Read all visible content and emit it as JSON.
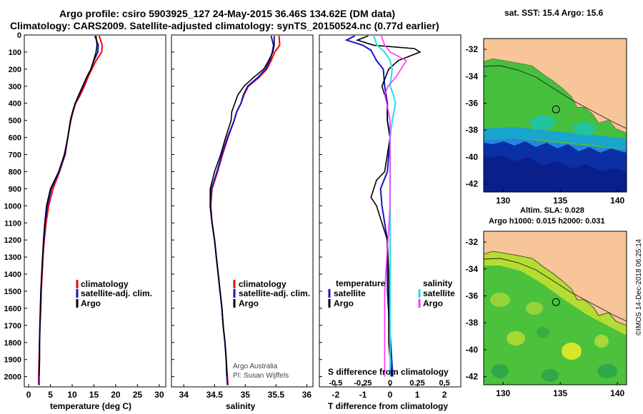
{
  "header": {
    "title_line1": "Argo profile: csiro 5903925_127 24-May-2015 36.46S 134.62E (DM data)",
    "title_line2": "Climatology: CARS2009. Satellite-adjusted climatology: synTS_20150524.nc (0.77d earlier)"
  },
  "credit": "©IMOS 14-Dec-2018 06:25:14",
  "colors": {
    "argo": "#000000",
    "climatology": "#ff0000",
    "satellite_adj": "#1515c8",
    "s_satellite": "#22ddee",
    "s_argo": "#ff33ff",
    "land": "#f7c597"
  },
  "chart_data": [
    {
      "type": "line",
      "panel": "temperature",
      "xlabel": "temperature (deg C)",
      "ylabel": "",
      "xlim": [
        -1,
        31.5
      ],
      "ylim": [
        2060,
        0
      ],
      "xticks": [
        "0",
        "5",
        "10",
        "15",
        "20",
        "25",
        "30"
      ],
      "yticks": [
        "0",
        "100",
        "200",
        "300",
        "400",
        "500",
        "600",
        "700",
        "800",
        "900",
        "1000",
        "1100",
        "1200",
        "1300",
        "1400",
        "1500",
        "1600",
        "1700",
        "1800",
        "1900",
        "2000"
      ],
      "legend": [
        "climatology",
        "satellite-adj. clim.",
        "Argo"
      ],
      "series": [
        {
          "name": "climatology",
          "depth": [
            5,
            60,
            100,
            150,
            200,
            250,
            300,
            350,
            400,
            450,
            500,
            600,
            700,
            800,
            900,
            1000,
            1100,
            1200,
            1300,
            1400,
            1500,
            1600,
            1700,
            1800,
            1900,
            2000,
            2050
          ],
          "values": [
            16.2,
            16.9,
            16.8,
            15.5,
            14.5,
            13.6,
            12.8,
            11.9,
            10.8,
            10.2,
            9.7,
            9.0,
            8.4,
            7.1,
            5.6,
            4.6,
            4.0,
            3.6,
            3.3,
            3.1,
            2.9,
            2.8,
            2.6,
            2.5,
            2.4,
            2.3,
            2.3
          ]
        },
        {
          "name": "satellite-adj. clim.",
          "depth": [
            5,
            60,
            100,
            150,
            200,
            250,
            300,
            350,
            400,
            450,
            500,
            600,
            700,
            800,
            900,
            1000,
            1100,
            1200,
            1300,
            1400,
            1500,
            1600,
            1700,
            1800,
            1900,
            2000,
            2050
          ],
          "values": [
            15.2,
            16.0,
            15.9,
            15.0,
            14.3,
            13.3,
            12.5,
            11.6,
            10.7,
            10.1,
            9.6,
            9.0,
            8.3,
            7.0,
            5.2,
            4.3,
            3.8,
            3.5,
            3.2,
            3.0,
            2.8,
            2.7,
            2.6,
            2.5,
            2.5,
            2.4,
            2.4
          ]
        },
        {
          "name": "Argo",
          "depth": [
            5,
            60,
            100,
            150,
            200,
            250,
            300,
            350,
            400,
            450,
            500,
            600,
            700,
            800,
            900,
            1000,
            1100,
            1200,
            1300,
            1400,
            1500,
            1600,
            1700,
            1800,
            1900,
            2000
          ],
          "values": [
            15.5,
            15.7,
            15.5,
            14.9,
            14.3,
            13.3,
            12.4,
            11.5,
            10.7,
            10.1,
            9.6,
            9.0,
            8.2,
            6.9,
            5.0,
            4.1,
            3.7,
            3.4,
            3.2,
            3.0,
            2.8,
            2.7,
            2.6,
            2.5,
            2.5,
            2.4
          ]
        }
      ]
    },
    {
      "type": "line",
      "panel": "salinity",
      "xlabel": "salinity",
      "ylabel": "",
      "xlim": [
        33.8,
        36.1
      ],
      "ylim": [
        2060,
        0
      ],
      "xticks": [
        "34",
        "34.5",
        "35",
        "35.5",
        "36"
      ],
      "legend": [
        "climatology",
        "satellite-adj. clim.",
        "Argo"
      ],
      "annotations": [
        "Argo Australia",
        "PI: Susan Wijffels"
      ],
      "series": [
        {
          "name": "climatology",
          "depth": [
            5,
            60,
            100,
            150,
            200,
            250,
            300,
            350,
            400,
            450,
            500,
            600,
            700,
            800,
            900,
            1000,
            1100,
            1200,
            1300,
            1400,
            1500,
            1600,
            1700,
            1800,
            1900,
            2000,
            2050
          ],
          "values": [
            35.55,
            35.56,
            35.48,
            35.42,
            35.35,
            35.22,
            35.05,
            34.98,
            34.93,
            34.86,
            34.82,
            34.72,
            34.63,
            34.55,
            34.46,
            34.44,
            34.46,
            34.5,
            34.53,
            34.56,
            34.59,
            34.62,
            34.64,
            34.67,
            34.69,
            34.71,
            34.72
          ]
        },
        {
          "name": "satellite-adj. clim.",
          "depth": [
            5,
            60,
            100,
            150,
            200,
            250,
            300,
            350,
            400,
            450,
            500,
            600,
            700,
            800,
            900,
            1000,
            1100,
            1200,
            1300,
            1400,
            1500,
            1600,
            1700,
            1800,
            1900,
            2000,
            2050
          ],
          "values": [
            35.42,
            35.46,
            35.44,
            35.4,
            35.33,
            35.2,
            35.04,
            34.97,
            34.93,
            34.86,
            34.82,
            34.71,
            34.62,
            34.54,
            34.45,
            34.43,
            34.46,
            34.5,
            34.53,
            34.56,
            34.59,
            34.62,
            34.64,
            34.67,
            34.69,
            34.7,
            34.71
          ]
        },
        {
          "name": "Argo",
          "depth": [
            5,
            60,
            100,
            150,
            200,
            250,
            300,
            350,
            400,
            450,
            500,
            600,
            700,
            800,
            900,
            1000,
            1100,
            1200,
            1300,
            1400,
            1500,
            1600,
            1700,
            1800,
            1900,
            2000
          ],
          "values": [
            35.47,
            35.47,
            35.45,
            35.38,
            35.3,
            35.13,
            34.98,
            34.88,
            34.83,
            34.78,
            34.77,
            34.68,
            34.6,
            34.5,
            34.43,
            34.43,
            34.46,
            34.5,
            34.53,
            34.56,
            34.59,
            34.62,
            34.64,
            34.67,
            34.69,
            34.7
          ]
        }
      ]
    },
    {
      "type": "line",
      "panel": "difference",
      "xlabel": "T difference from climatology",
      "xlabel_top": "S difference from climatology",
      "xlim": [
        -2.6,
        2.6
      ],
      "ylim": [
        2060,
        0
      ],
      "xticks": [
        "-2",
        "-1",
        "0",
        "1",
        "2"
      ],
      "xticks_top": [
        "-0.5",
        "-0.25",
        "0",
        "0.25",
        "0.5"
      ],
      "legend_t_title": "temperature",
      "legend_s_title": "salinity",
      "legend_t": [
        "satellite",
        "Argo"
      ],
      "legend_s": [
        "satellite",
        "Argo"
      ],
      "series": [
        {
          "name": "temperature satellite",
          "depth": [
            5,
            30,
            60,
            90,
            120,
            150,
            200,
            300,
            400,
            500,
            600,
            700,
            800,
            900,
            1000,
            1100,
            1200,
            1500,
            2000
          ],
          "values": [
            -1.3,
            -1.6,
            -1.0,
            -0.7,
            -0.6,
            -0.5,
            -0.25,
            -0.2,
            -0.1,
            -0.1,
            0.0,
            -0.05,
            -0.1,
            -0.35,
            -0.3,
            -0.2,
            -0.1,
            -0.1,
            0.1
          ]
        },
        {
          "name": "temperature Argo",
          "depth": [
            5,
            30,
            60,
            80,
            100,
            150,
            200,
            300,
            400,
            500,
            600,
            700,
            800,
            850,
            900,
            950,
            1000,
            1100,
            1200,
            1400,
            1600,
            1800,
            2000
          ],
          "values": [
            -0.8,
            -1.2,
            -0.6,
            0.9,
            1.1,
            0.3,
            -0.05,
            -0.3,
            -0.1,
            -0.1,
            0.0,
            -0.1,
            -0.2,
            -0.5,
            -0.6,
            -0.7,
            -0.5,
            -0.3,
            -0.1,
            -0.05,
            -0.05,
            -0.05,
            0.05
          ]
        },
        {
          "name": "salinity satellite",
          "depth": [
            5,
            60,
            100,
            150,
            200,
            250,
            300,
            350,
            400,
            500,
            600,
            800,
            1000,
            1200,
            1500,
            2000
          ],
          "values": [
            -0.15,
            -0.12,
            -0.05,
            0.0,
            0.02,
            0.01,
            0.0,
            0.03,
            0.05,
            0.02,
            0.0,
            0.0,
            0.0,
            0.0,
            0.0,
            0.0
          ]
        },
        {
          "name": "salinity Argo",
          "depth": [
            5,
            60,
            100,
            150,
            200,
            250,
            300,
            350,
            400,
            500,
            600,
            800,
            1000,
            1200,
            1500,
            2000
          ],
          "values": [
            -0.08,
            -0.05,
            0.0,
            0.15,
            0.1,
            0.05,
            -0.02,
            -0.05,
            -0.03,
            0.0,
            0.0,
            0.0,
            0.0,
            -0.02,
            -0.05,
            -0.05
          ]
        }
      ]
    }
  ],
  "maps": [
    {
      "title": "sat. SST: 15.4 Argo: 15.6",
      "xticks": [
        "130",
        "135",
        "140"
      ],
      "yticks": [
        "-32",
        "-34",
        "-36",
        "-38",
        "-40",
        "-42"
      ],
      "xlim": [
        128.3,
        140.8
      ],
      "ylim": [
        -42.6,
        -31.2
      ],
      "marker": {
        "lon": 134.62,
        "lat": -36.46
      }
    },
    {
      "title_line1": "Altim. SLA: 0.028",
      "title_line2": "Argo h1000: 0.015 h2000: 0.031",
      "xticks": [
        "130",
        "135",
        "140"
      ],
      "yticks": [
        "-32",
        "-34",
        "-36",
        "-38",
        "-40",
        "-42"
      ],
      "xlim": [
        128.3,
        140.8
      ],
      "ylim": [
        -42.6,
        -31.2
      ],
      "marker": {
        "lon": 134.62,
        "lat": -36.46
      }
    }
  ]
}
